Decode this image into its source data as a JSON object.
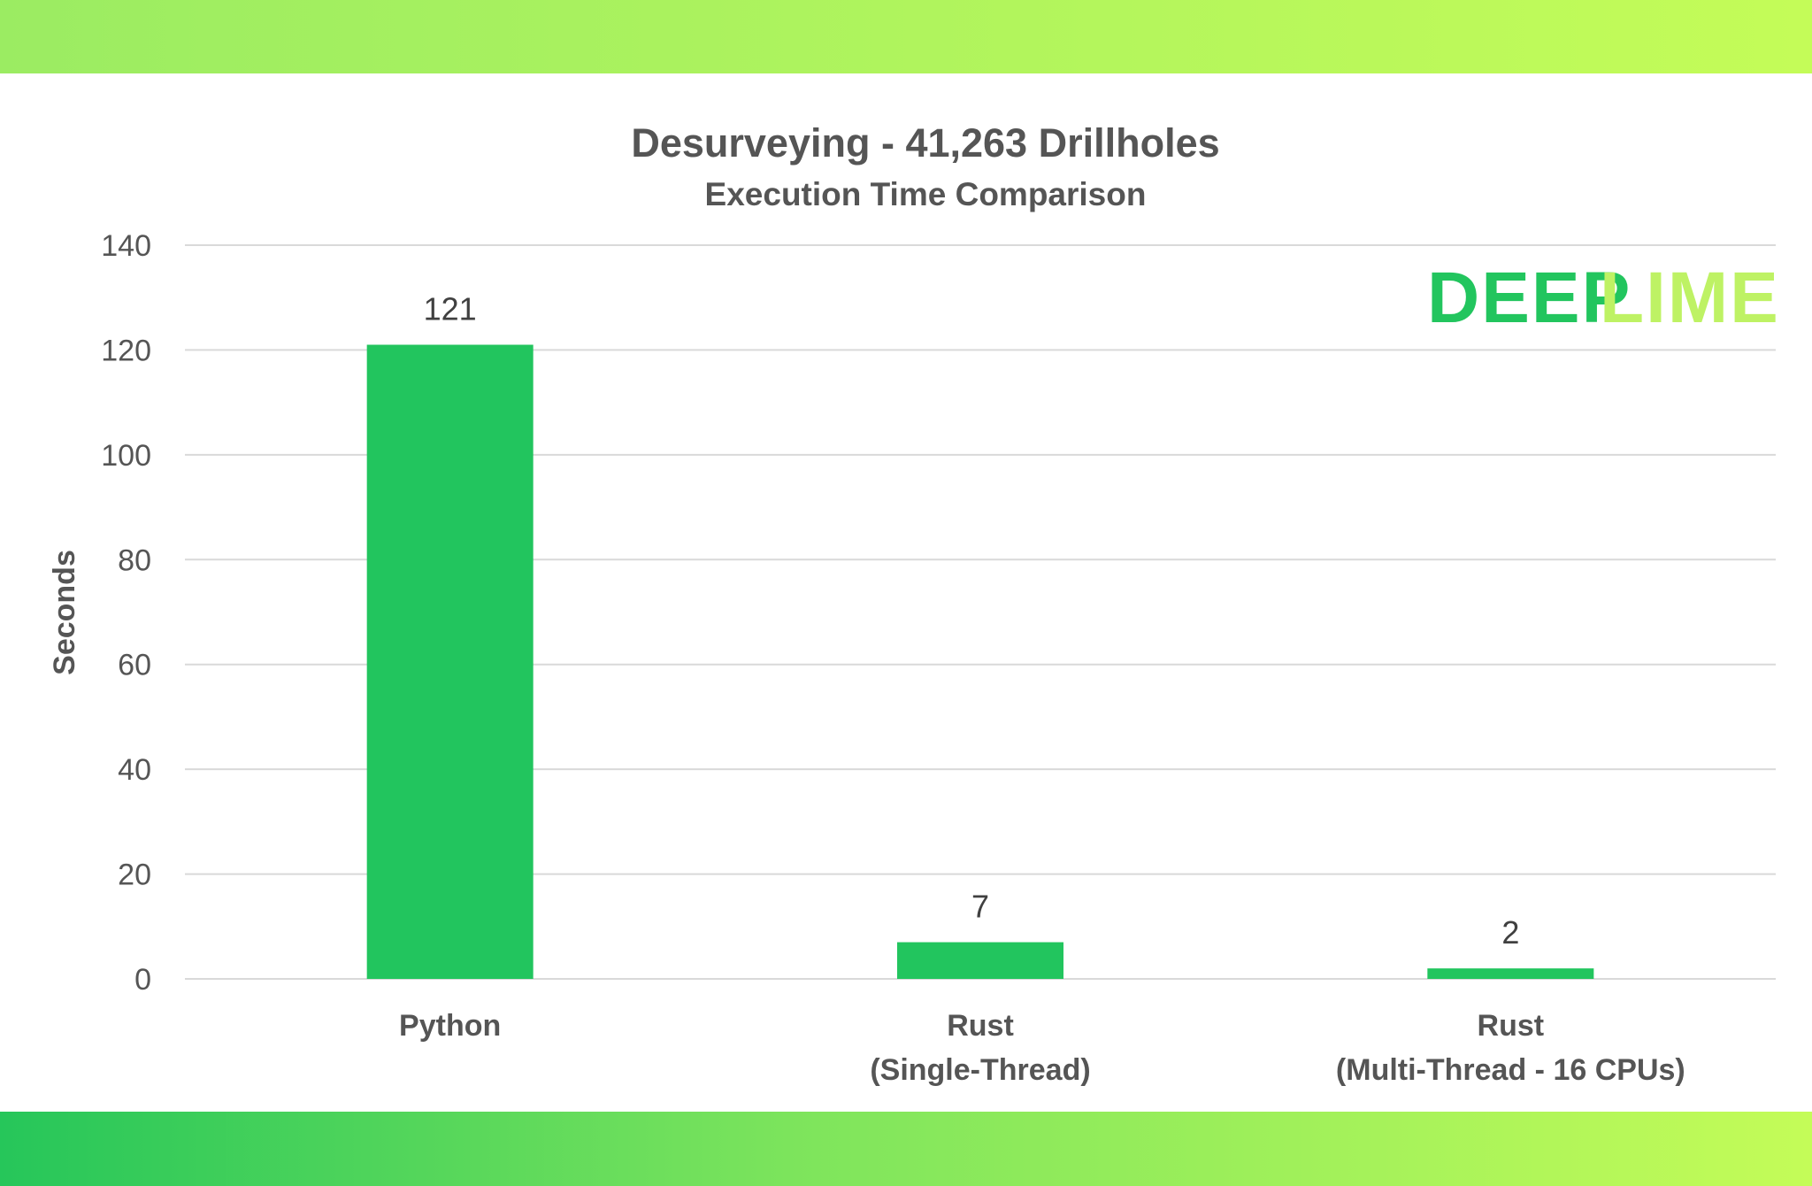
{
  "chart_data": {
    "type": "bar",
    "title": "Desurveying - 41,263 Drillholes",
    "subtitle": "Execution Time Comparison",
    "xlabel": "",
    "ylabel": "Seconds",
    "categories": [
      [
        "Python"
      ],
      [
        "Rust",
        "(Single-Thread)"
      ],
      [
        "Rust",
        "(Multi-Thread - 16 CPUs)"
      ]
    ],
    "values": [
      121,
      7,
      2
    ],
    "data_labels": [
      "121",
      "7",
      "2"
    ],
    "ylim": [
      0,
      140
    ],
    "yticks": [
      "0",
      "20",
      "40",
      "60",
      "80",
      "100",
      "120",
      "140"
    ],
    "grid": true,
    "bar_color": "#22c55e"
  },
  "logo": {
    "part1": "DEEP",
    "part2": "LIME",
    "color1": "#22c55e",
    "color2": "#bef264"
  }
}
